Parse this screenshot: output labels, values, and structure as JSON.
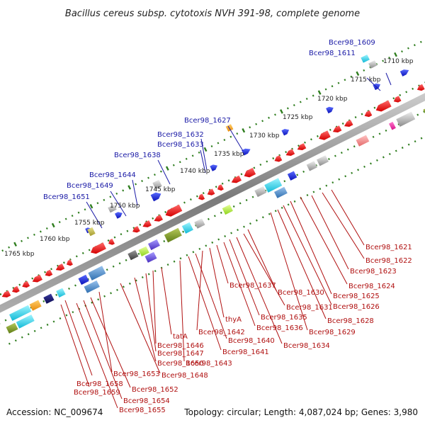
{
  "title": "Bacillus cereus subsp. cytotoxis NVH 391-98, complete genome",
  "footer": {
    "accession": "Accession: NC_009674",
    "topology": "Topology: circular; Length: 4,087,024 bp; Genes: 3,980"
  },
  "scale_labels": [
    "1710 kbp",
    "1715 kbp",
    "1720 kbp",
    "1725 kbp",
    "1730 kbp",
    "1735 kbp",
    "1740 kbp",
    "1745 kbp",
    "1750 kbp",
    "1755 kbp",
    "1760 kbp",
    "1765 kbp"
  ],
  "colors": {
    "forward": "#1f1fd6",
    "reverse": "#e81010",
    "label_forward": "#1a1aa6",
    "label_reverse": "#b01010",
    "tick": "#2e7d1e",
    "backbone": "#888888"
  },
  "labels_forward": [
    "Bcer98_1609",
    "Bcer98_1611",
    "Bcer98_1627",
    "Bcer98_1632",
    "Bcer98_1633",
    "Bcer98_1638",
    "Bcer98_1644",
    "Bcer98_1649",
    "Bcer98_1651"
  ],
  "labels_reverse": [
    "Bcer98_1621",
    "Bcer98_1622",
    "Bcer98_1623",
    "Bcer98_1624",
    "Bcer98_1625",
    "Bcer98_1626",
    "Bcer98_1628",
    "Bcer98_1629",
    "Bcer98_1630",
    "Bcer98_1631",
    "Bcer98_1634",
    "Bcer98_1635",
    "Bcer98_1636",
    "Bcer98_1637",
    "thyA",
    "Bcer98_1642",
    "Bcer98_1640",
    "Bcer98_1641",
    "Bcer98_1643",
    "tatA",
    "Bcer98_1646",
    "Bcer98_1647",
    "Bcer98_1650",
    "Bcer98_1648",
    "Bcer98_1653",
    "Bcer98_1658",
    "Bcer98_1652",
    "Bcer98_1659",
    "Bcer98_1654",
    "Bcer98_1655"
  ]
}
